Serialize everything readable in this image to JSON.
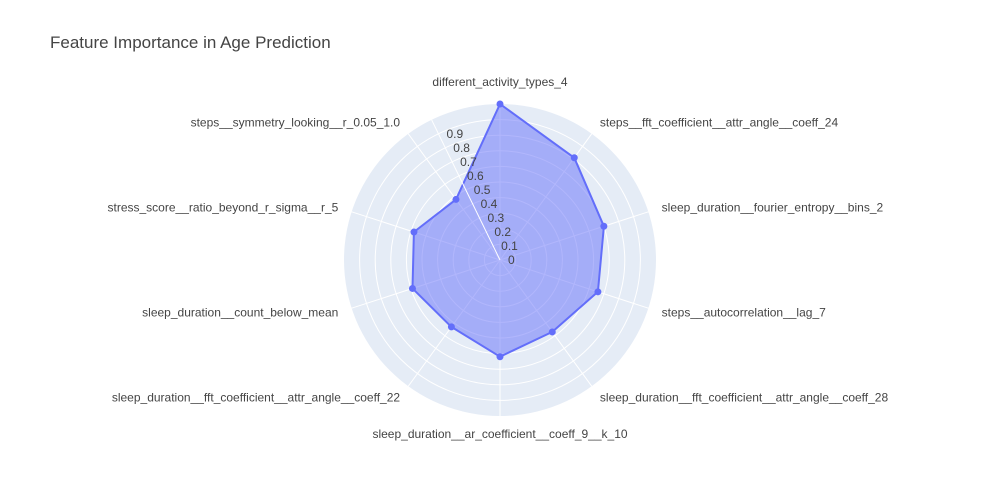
{
  "chart_data": {
    "type": "radar",
    "title": "Feature Importance in Age Prediction",
    "categories": [
      "different_activity_types_4",
      "steps__fft_coefficient__attr_angle__coeff_24",
      "sleep_duration__fourier_entropy__bins_2",
      "steps__autocorrelation__lag_7",
      "sleep_duration__fft_coefficient__attr_angle__coeff_28",
      "sleep_duration__ar_coefficient__coeff_9__k_10",
      "sleep_duration__fft_coefficient__attr_angle__coeff_22",
      "sleep_duration__count_below_mean",
      "stress_score__ratio_beyond_r_sigma__r_5",
      "steps__symmetry_looking__r_0.05_1.0"
    ],
    "series": [
      {
        "values": [
          1.0,
          0.81,
          0.7,
          0.66,
          0.57,
          0.62,
          0.53,
          0.59,
          0.58,
          0.48
        ]
      }
    ],
    "radial_ticks": [
      "0",
      "0.1",
      "0.2",
      "0.3",
      "0.4",
      "0.5",
      "0.6",
      "0.7",
      "0.8",
      "0.9"
    ],
    "rlim": [
      0,
      1.0
    ],
    "grid": true,
    "colors": {
      "fill": "#636efa",
      "line": "#636efa",
      "polar_bg": "#e5ecf6",
      "grid": "#ffffff",
      "text": "#444444"
    }
  }
}
